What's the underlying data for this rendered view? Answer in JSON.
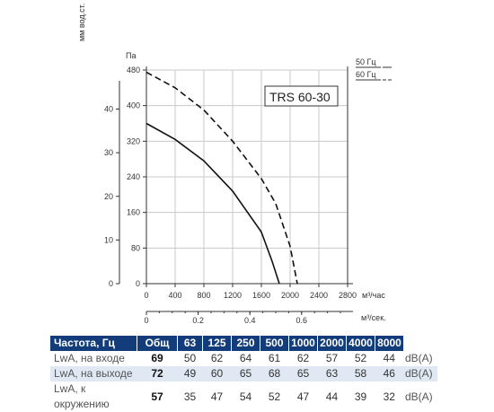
{
  "chart_data": {
    "type": "line",
    "model_label": "TRS 60-30",
    "y_axis_pa": {
      "label": "Па",
      "ticks": [
        "0",
        "80",
        "160",
        "240",
        "320",
        "400",
        "480"
      ],
      "range": [
        0,
        480
      ]
    },
    "y_axis_mm": {
      "label": "мм вод.ст.",
      "ticks": [
        "0",
        "10",
        "20",
        "30",
        "40"
      ]
    },
    "x_axis_m3h": {
      "label": "м³/час",
      "ticks": [
        "0",
        "400",
        "800",
        "1200",
        "1600",
        "2000",
        "2400",
        "2800"
      ],
      "range": [
        0,
        2800
      ]
    },
    "x_axis_m3s": {
      "label": "м³/сек.",
      "ticks": [
        "0",
        "0.2",
        "0.4",
        "0.6"
      ],
      "values": [
        0,
        0.2,
        0.4,
        0.6
      ]
    },
    "series": [
      {
        "name": "50 Гц",
        "style": "solid",
        "color": "#111111",
        "x": [
          0,
          400,
          800,
          1200,
          1600,
          1750,
          1850
        ],
        "y": [
          360,
          324,
          276,
          208,
          116,
          50,
          0
        ]
      },
      {
        "name": "60 Гц",
        "style": "dashed",
        "color": "#111111",
        "x": [
          0,
          400,
          800,
          1200,
          1600,
          1800,
          2000,
          2100
        ],
        "y": [
          475,
          440,
          390,
          320,
          236,
          180,
          84,
          0
        ]
      }
    ]
  },
  "noise_table": {
    "headers": [
      "Частота, Гц",
      "Общ",
      "63",
      "125",
      "250",
      "500",
      "1000",
      "2000",
      "4000",
      "8000"
    ],
    "rows": [
      {
        "label": "LwA, на входе",
        "values": [
          "69",
          "50",
          "62",
          "64",
          "61",
          "62",
          "57",
          "52",
          "44"
        ],
        "unit": "dB(A)"
      },
      {
        "label": "LwA, на выходе",
        "values": [
          "72",
          "49",
          "60",
          "65",
          "68",
          "65",
          "63",
          "58",
          "46"
        ],
        "unit": "dB(A)"
      },
      {
        "label": "LwA, к окружению",
        "values": [
          "57",
          "35",
          "47",
          "54",
          "52",
          "47",
          "44",
          "39",
          "32"
        ],
        "unit": "dB(A)"
      }
    ]
  }
}
